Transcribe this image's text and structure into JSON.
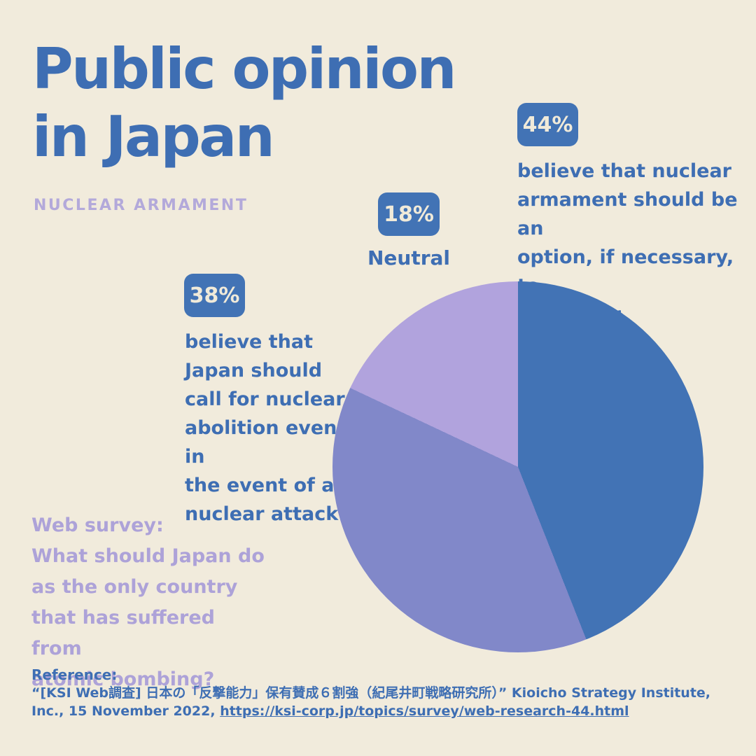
{
  "colors": {
    "bg": "#f1ebdc",
    "blue": "#3e6eb3",
    "badge_blue": "#4273b5",
    "cream": "#f0ead9",
    "purple_subtitle": "#b3a9da",
    "purple_text": "#ada2d8",
    "pie_blue": "#4273b5",
    "pie_mid_purple": "#8188c9",
    "pie_light_purple": "#b1a3dd"
  },
  "header": {
    "title": "Public opinion\nin Japan",
    "subtitle": "NUCLEAR ARMAMENT"
  },
  "callouts": {
    "armament": {
      "pct": "44%",
      "text": "believe that nuclear\narmament should be an\noption, if necessary, to\ndeter war"
    },
    "neutral": {
      "pct": "18%",
      "label": "Neutral"
    },
    "abolition": {
      "pct": "38%",
      "text": "believe that\nJapan should\ncall for nuclear\nabolition even in\nthe event of a\nnuclear attack"
    }
  },
  "survey_question": "Web survey:\nWhat should Japan do\nas the only country\nthat has suffered from\natomic bombing?",
  "reference": {
    "heading": "Reference:",
    "citation_prefix": "“[KSI Web調査] 日本の「反撃能力」保有賛成６割強（紀尾井町戦略研究所）” Kioicho Strategy Institute, Inc., 15 November 2022, ",
    "link": "https://ksi-corp.jp/topics/survey/web-research-44.html"
  },
  "chart_data": {
    "type": "pie",
    "title": "Public opinion in Japan — Nuclear armament",
    "start_angle_deg": 0,
    "direction": "clockwise",
    "legend_position": "none",
    "slices": [
      {
        "label": "believe that nuclear armament should be an option, if necessary, to deter war",
        "value": 44,
        "color": "#4273b5"
      },
      {
        "label": "believe that Japan should call for nuclear abolition even in the event of a nuclear attack",
        "value": 38,
        "color": "#8188c9"
      },
      {
        "label": "Neutral",
        "value": 18,
        "color": "#b1a3dd"
      }
    ]
  }
}
